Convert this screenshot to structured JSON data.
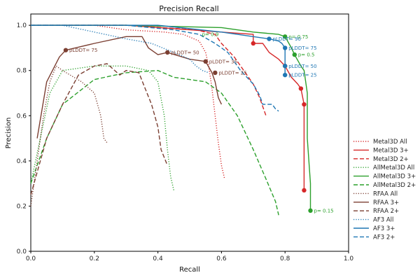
{
  "chart_data": {
    "type": "line",
    "title": "Precision Recall",
    "xlabel": "Recall",
    "ylabel": "Precision",
    "xlim": [
      0.0,
      1.0
    ],
    "ylim": [
      0.0,
      1.05
    ],
    "xticks": [
      "0.0",
      "0.2",
      "0.4",
      "0.6",
      "0.8",
      "1.0"
    ],
    "yticks": [
      "0.0",
      "0.2",
      "0.4",
      "0.6",
      "0.8",
      "1.0"
    ],
    "grid": false,
    "legend_position": "right outside",
    "series": [
      {
        "name": "Metal3D All",
        "color": "#d62728",
        "dash": "dotted",
        "points": [
          [
            0.0,
            1.0
          ],
          [
            0.2,
            1.0
          ],
          [
            0.3,
            0.98
          ],
          [
            0.42,
            0.97
          ],
          [
            0.48,
            0.96
          ],
          [
            0.53,
            0.93
          ],
          [
            0.55,
            0.88
          ],
          [
            0.56,
            0.82
          ],
          [
            0.57,
            0.72
          ],
          [
            0.58,
            0.6
          ],
          [
            0.59,
            0.48
          ],
          [
            0.6,
            0.38
          ],
          [
            0.61,
            0.32
          ]
        ]
      },
      {
        "name": "Metal3D 3+",
        "color": "#d62728",
        "dash": "solid",
        "points": [
          [
            0.0,
            1.0
          ],
          [
            0.3,
            1.0
          ],
          [
            0.5,
            0.98
          ],
          [
            0.6,
            0.97
          ],
          [
            0.7,
            0.96
          ],
          [
            0.7,
            0.92
          ],
          [
            0.73,
            0.92
          ],
          [
            0.75,
            0.88
          ],
          [
            0.78,
            0.85
          ],
          [
            0.8,
            0.82
          ],
          [
            0.82,
            0.77
          ],
          [
            0.84,
            0.74
          ],
          [
            0.85,
            0.72
          ],
          [
            0.86,
            0.65
          ],
          [
            0.86,
            0.5
          ],
          [
            0.86,
            0.35
          ],
          [
            0.86,
            0.27
          ]
        ]
      },
      {
        "name": "Metal3D 2+",
        "color": "#d62728",
        "dash": "dashed",
        "points": [
          [
            0.0,
            1.0
          ],
          [
            0.3,
            1.0
          ],
          [
            0.52,
            0.98
          ],
          [
            0.58,
            0.96
          ],
          [
            0.6,
            0.92
          ],
          [
            0.64,
            0.86
          ],
          [
            0.67,
            0.8
          ],
          [
            0.7,
            0.74
          ],
          [
            0.72,
            0.68
          ],
          [
            0.73,
            0.64
          ],
          [
            0.74,
            0.6
          ]
        ]
      },
      {
        "name": "AllMetal3D All",
        "color": "#2ca02c",
        "dash": "dotted",
        "points": [
          [
            0.0,
            0.3
          ],
          [
            0.03,
            0.5
          ],
          [
            0.06,
            0.7
          ],
          [
            0.1,
            0.8
          ],
          [
            0.15,
            0.81
          ],
          [
            0.2,
            0.82
          ],
          [
            0.3,
            0.82
          ],
          [
            0.37,
            0.8
          ],
          [
            0.4,
            0.75
          ],
          [
            0.42,
            0.6
          ],
          [
            0.43,
            0.45
          ],
          [
            0.44,
            0.33
          ],
          [
            0.45,
            0.27
          ]
        ]
      },
      {
        "name": "AllMetal3D 3+",
        "color": "#2ca02c",
        "dash": "solid",
        "points": [
          [
            0.0,
            1.0
          ],
          [
            0.3,
            1.0
          ],
          [
            0.6,
            0.99
          ],
          [
            0.7,
            0.97
          ],
          [
            0.78,
            0.96
          ],
          [
            0.8,
            0.95
          ],
          [
            0.82,
            0.9
          ],
          [
            0.83,
            0.87
          ],
          [
            0.85,
            0.82
          ],
          [
            0.86,
            0.8
          ],
          [
            0.87,
            0.7
          ],
          [
            0.87,
            0.5
          ],
          [
            0.88,
            0.3
          ],
          [
            0.88,
            0.18
          ]
        ]
      },
      {
        "name": "AllMetal3D 2+",
        "color": "#2ca02c",
        "dash": "dashed",
        "points": [
          [
            0.0,
            0.3
          ],
          [
            0.05,
            0.5
          ],
          [
            0.1,
            0.65
          ],
          [
            0.2,
            0.76
          ],
          [
            0.3,
            0.79
          ],
          [
            0.4,
            0.8
          ],
          [
            0.45,
            0.77
          ],
          [
            0.5,
            0.76
          ],
          [
            0.55,
            0.75
          ],
          [
            0.6,
            0.7
          ],
          [
            0.65,
            0.6
          ],
          [
            0.7,
            0.45
          ],
          [
            0.74,
            0.32
          ],
          [
            0.77,
            0.22
          ],
          [
            0.78,
            0.16
          ]
        ]
      },
      {
        "name": "RFAA All",
        "color": "#7b3f32",
        "dash": "dotted",
        "points": [
          [
            0.0,
            0.2
          ],
          [
            0.02,
            0.4
          ],
          [
            0.04,
            0.6
          ],
          [
            0.06,
            0.75
          ],
          [
            0.08,
            0.82
          ],
          [
            0.1,
            0.8
          ],
          [
            0.16,
            0.75
          ],
          [
            0.2,
            0.7
          ],
          [
            0.22,
            0.6
          ],
          [
            0.23,
            0.5
          ],
          [
            0.24,
            0.48
          ]
        ]
      },
      {
        "name": "RFAA 3+",
        "color": "#7b3f32",
        "dash": "solid",
        "points": [
          [
            0.02,
            0.5
          ],
          [
            0.05,
            0.75
          ],
          [
            0.09,
            0.86
          ],
          [
            0.11,
            0.89
          ],
          [
            0.2,
            0.92
          ],
          [
            0.3,
            0.95
          ],
          [
            0.35,
            0.95
          ],
          [
            0.37,
            0.9
          ],
          [
            0.4,
            0.87
          ],
          [
            0.43,
            0.88
          ],
          [
            0.5,
            0.85
          ],
          [
            0.55,
            0.84
          ],
          [
            0.57,
            0.79
          ],
          [
            0.58,
            0.75
          ],
          [
            0.59,
            0.68
          ],
          [
            0.6,
            0.65
          ]
        ]
      },
      {
        "name": "RFAA 2+",
        "color": "#7b3f32",
        "dash": "dashed",
        "points": [
          [
            0.0,
            0.25
          ],
          [
            0.05,
            0.5
          ],
          [
            0.1,
            0.65
          ],
          [
            0.15,
            0.78
          ],
          [
            0.2,
            0.82
          ],
          [
            0.24,
            0.83
          ],
          [
            0.28,
            0.78
          ],
          [
            0.3,
            0.8
          ],
          [
            0.34,
            0.79
          ],
          [
            0.36,
            0.72
          ],
          [
            0.38,
            0.65
          ],
          [
            0.4,
            0.55
          ],
          [
            0.41,
            0.45
          ],
          [
            0.43,
            0.38
          ]
        ]
      },
      {
        "name": "AF3 All",
        "color": "#1f77b4",
        "dash": "dotted",
        "points": [
          [
            0.0,
            1.0
          ],
          [
            0.1,
            1.0
          ],
          [
            0.2,
            0.97
          ],
          [
            0.3,
            0.94
          ],
          [
            0.38,
            0.92
          ],
          [
            0.45,
            0.88
          ],
          [
            0.5,
            0.85
          ],
          [
            0.52,
            0.82
          ],
          [
            0.54,
            0.8
          ],
          [
            0.56,
            0.79
          ]
        ]
      },
      {
        "name": "AF3 3+",
        "color": "#1f77b4",
        "dash": "solid",
        "points": [
          [
            0.0,
            1.0
          ],
          [
            0.4,
            1.0
          ],
          [
            0.6,
            0.97
          ],
          [
            0.7,
            0.95
          ],
          [
            0.75,
            0.94
          ],
          [
            0.78,
            0.93
          ],
          [
            0.79,
            0.92
          ],
          [
            0.8,
            0.9
          ],
          [
            0.8,
            0.85
          ],
          [
            0.8,
            0.82
          ],
          [
            0.8,
            0.78
          ]
        ]
      },
      {
        "name": "AF3 2+",
        "color": "#1f77b4",
        "dash": "dashed",
        "points": [
          [
            0.0,
            1.0
          ],
          [
            0.3,
            1.0
          ],
          [
            0.45,
            0.98
          ],
          [
            0.53,
            0.96
          ],
          [
            0.58,
            0.92
          ],
          [
            0.62,
            0.88
          ],
          [
            0.66,
            0.8
          ],
          [
            0.7,
            0.74
          ],
          [
            0.72,
            0.69
          ],
          [
            0.73,
            0.65
          ],
          [
            0.76,
            0.65
          ],
          [
            0.77,
            0.63
          ],
          [
            0.78,
            0.62
          ]
        ]
      }
    ],
    "markers": [
      {
        "series": "RFAA 3+",
        "color": "#7b3f32",
        "x": 0.11,
        "y": 0.89,
        "label": "pLDDT= 75"
      },
      {
        "series": "RFAA 3+",
        "color": "#7b3f32",
        "x": 0.43,
        "y": 0.88,
        "label": "pLDDT= 50"
      },
      {
        "series": "RFAA 3+",
        "color": "#7b3f32",
        "x": 0.55,
        "y": 0.84,
        "label": "pLDDT= 35"
      },
      {
        "series": "RFAA 3+",
        "color": "#7b3f32",
        "x": 0.58,
        "y": 0.79,
        "label": "pLDDT= 25"
      },
      {
        "series": "Metal3D 3+",
        "color": "#d62728",
        "x": 0.7,
        "y": 0.92,
        "label": ""
      },
      {
        "series": "Metal3D 3+",
        "color": "#d62728",
        "x": 0.8,
        "y": 0.82,
        "label": ""
      },
      {
        "series": "Metal3D 3+",
        "color": "#d62728",
        "x": 0.85,
        "y": 0.72,
        "label": ""
      },
      {
        "series": "Metal3D 3+",
        "color": "#d62728",
        "x": 0.86,
        "y": 0.65,
        "label": ""
      },
      {
        "series": "Metal3D 3+",
        "color": "#d62728",
        "x": 0.86,
        "y": 0.27,
        "label": ""
      },
      {
        "series": "AllMetal3D 3+",
        "color": "#2ca02c",
        "x": 0.8,
        "y": 0.95,
        "label": "p= 0.75"
      },
      {
        "series": "AllMetal3D 3+",
        "color": "#2ca02c",
        "x": 0.83,
        "y": 0.87,
        "label": "p= 0.5"
      },
      {
        "series": "AllMetal3D 3+",
        "color": "#2ca02c",
        "x": 0.88,
        "y": 0.18,
        "label": "p= 0.15"
      },
      {
        "series": "AF3 3+",
        "color": "#1f77b4",
        "x": 0.75,
        "y": 0.94,
        "label": "pLDDT= 90"
      },
      {
        "series": "AF3 3+",
        "color": "#1f77b4",
        "x": 0.8,
        "y": 0.9,
        "label": "pLDDT= 75"
      },
      {
        "series": "AF3 3+",
        "color": "#1f77b4",
        "x": 0.8,
        "y": 0.82,
        "label": "pLDDT= 50"
      },
      {
        "series": "AF3 3+",
        "color": "#1f77b4",
        "x": 0.8,
        "y": 0.78,
        "label": "pLDDT= 25"
      }
    ],
    "annotations": [
      {
        "text": "p= 0.9",
        "x": 0.53,
        "y": 0.96,
        "color": "#2ca02c"
      }
    ]
  }
}
